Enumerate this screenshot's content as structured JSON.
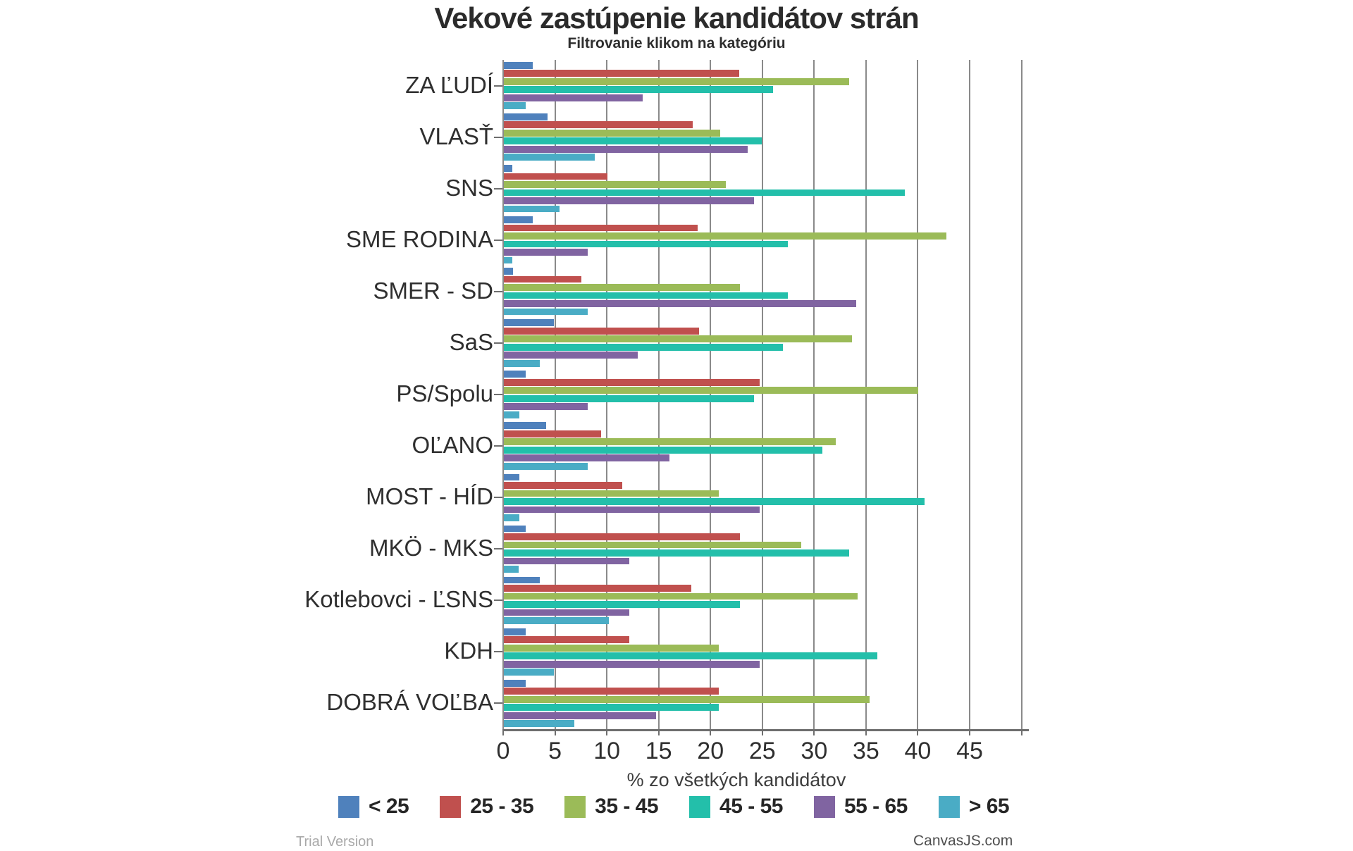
{
  "footer": {
    "trial": "Trial Version",
    "credit": "CanvasJS.com"
  },
  "colors": {
    "gridline": "#8a8a8a",
    "axis": "#6e6e6e",
    "title_text": "#2b2b2b",
    "label_text": "#2f2f2f"
  },
  "chart_data": {
    "type": "bar",
    "orientation": "horizontal",
    "title": "Vekové zastúpenie kandidátov strán",
    "subtitle": "Filtrovanie klikom na kategóriu",
    "xlabel": "% zo všetkých kandidátov",
    "xlim": [
      0,
      50
    ],
    "xticks": [
      0,
      5,
      10,
      15,
      20,
      25,
      30,
      35,
      40,
      45
    ],
    "grid": true,
    "legend_position": "bottom",
    "categories": [
      "ZA ĽUDÍ",
      "VLASŤ",
      "SNS",
      "SME RODINA",
      "SMER - SD",
      "SaS",
      "PS/Spolu",
      "OĽANO",
      "MOST - HÍD",
      "MKÖ - MKS",
      "Kotlebovci - ĽSNS",
      "KDH",
      "DOBRÁ VOĽBA"
    ],
    "series": [
      {
        "name": "< 25",
        "color": "#4F81BC",
        "values": [
          2.8,
          4.2,
          0.8,
          2.8,
          0.9,
          4.8,
          2.1,
          4.1,
          1.5,
          2.1,
          3.5,
          2.1,
          2.1
        ]
      },
      {
        "name": "25 - 35",
        "color": "#C0504E",
        "values": [
          22.7,
          18.2,
          10.0,
          18.7,
          7.5,
          18.8,
          24.7,
          9.4,
          11.4,
          22.8,
          18.1,
          12.1,
          20.7
        ]
      },
      {
        "name": "35 - 45",
        "color": "#9BBB58",
        "values": [
          33.3,
          20.9,
          21.4,
          42.7,
          22.8,
          33.6,
          40.0,
          32.0,
          20.7,
          28.7,
          34.1,
          20.7,
          35.3
        ]
      },
      {
        "name": "45 - 55",
        "color": "#23BFAA",
        "values": [
          26.0,
          24.9,
          38.7,
          27.4,
          27.4,
          26.9,
          24.1,
          30.7,
          40.6,
          33.3,
          22.8,
          36.0,
          20.7
        ]
      },
      {
        "name": "55 - 65",
        "color": "#8064A1",
        "values": [
          13.4,
          23.5,
          24.1,
          8.1,
          34.0,
          12.9,
          8.1,
          16.0,
          24.7,
          12.1,
          12.1,
          24.7,
          14.7
        ]
      },
      {
        "name": "> 65",
        "color": "#4AACC5",
        "values": [
          2.1,
          8.8,
          5.4,
          0.8,
          8.1,
          3.5,
          1.5,
          8.1,
          1.5,
          1.4,
          10.1,
          4.8,
          6.8
        ]
      }
    ]
  }
}
